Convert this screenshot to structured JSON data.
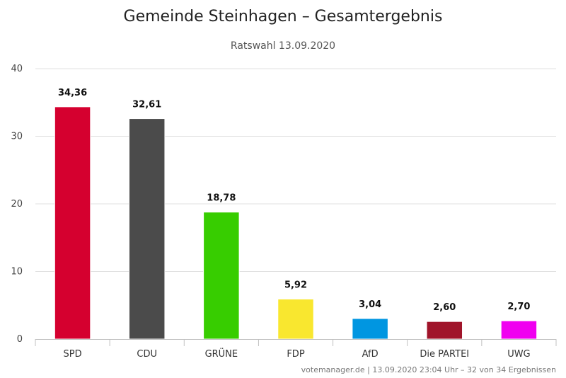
{
  "chart_data": {
    "type": "bar",
    "title": "Gemeinde Steinhagen – Gesamtergebnis",
    "subtitle": "Ratswahl 13.09.2020",
    "categories": [
      "SPD",
      "CDU",
      "GRÜNE",
      "FDP",
      "AfD",
      "Die PARTEI",
      "UWG"
    ],
    "values": [
      34.36,
      32.61,
      18.78,
      5.92,
      3.04,
      2.6,
      2.7
    ],
    "value_labels": [
      "34,36",
      "32,61",
      "18,78",
      "5,92",
      "3,04",
      "2,60",
      "2,70"
    ],
    "colors": [
      "#d5002f",
      "#4b4b4b",
      "#37cd00",
      "#f9e72f",
      "#0096e1",
      "#a0142a",
      "#f000f0"
    ],
    "ylim": [
      0,
      40
    ],
    "yticks": [
      "0",
      "10",
      "20",
      "30",
      "40"
    ],
    "ytick_values": [
      0,
      10,
      20,
      30,
      40
    ],
    "grid": true,
    "xlabel": "",
    "ylabel": ""
  },
  "credits": "votemanager.de | 13.09.2020 23:04 Uhr – 32 von 34 Ergebnissen"
}
